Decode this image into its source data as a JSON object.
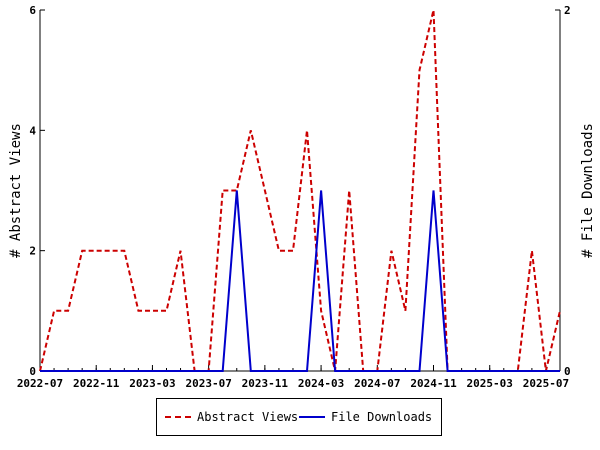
{
  "chart_data": {
    "type": "line",
    "xlabel": "",
    "ylabel": "# Abstract Views",
    "y2label": "# File Downloads",
    "x_tick_labels": [
      "2022-07",
      "2022-11",
      "2023-03",
      "2023-07",
      "2023-11",
      "2024-03",
      "2024-07",
      "2024-11",
      "2025-03",
      "2025-07"
    ],
    "x_tick_months": [
      "2022-07",
      "2022-11",
      "2023-03",
      "2023-07",
      "2023-11",
      "2024-03",
      "2024-07",
      "2024-11",
      "2025-03",
      "2025-07"
    ],
    "x_range": [
      "2022-07",
      "2025-08"
    ],
    "ylim": [
      0,
      6
    ],
    "y_ticks": [
      0,
      2,
      4,
      6
    ],
    "y2lim": [
      0,
      2
    ],
    "y2_ticks": [
      0,
      2
    ],
    "grid": false,
    "legend_position": "bottom",
    "series": [
      {
        "name": "Abstract Views",
        "axis": "left",
        "color": "#cc0000",
        "style": "dashed",
        "x": [
          "2022-07",
          "2022-08",
          "2022-09",
          "2022-10",
          "2022-11",
          "2022-12",
          "2023-01",
          "2023-02",
          "2023-03",
          "2023-04",
          "2023-05",
          "2023-06",
          "2023-07",
          "2023-08",
          "2023-09",
          "2023-10",
          "2023-11",
          "2023-12",
          "2024-01",
          "2024-02",
          "2024-03",
          "2024-04",
          "2024-05",
          "2024-06",
          "2024-07",
          "2024-08",
          "2024-09",
          "2024-10",
          "2024-11",
          "2024-12",
          "2025-01",
          "2025-02",
          "2025-03",
          "2025-04",
          "2025-05",
          "2025-06",
          "2025-07",
          "2025-08"
        ],
        "values": [
          0,
          1,
          1,
          2,
          2,
          2,
          2,
          1,
          1,
          1,
          2,
          0,
          0,
          3,
          3,
          4,
          3,
          2,
          2,
          4,
          1,
          0,
          3,
          0,
          0,
          2,
          1,
          5,
          6,
          0,
          0,
          0,
          0,
          0,
          0,
          2,
          0,
          1
        ]
      },
      {
        "name": "File Downloads",
        "axis": "right",
        "color": "#0000cc",
        "style": "solid",
        "x": [
          "2022-07",
          "2022-08",
          "2022-09",
          "2022-10",
          "2022-11",
          "2022-12",
          "2023-01",
          "2023-02",
          "2023-03",
          "2023-04",
          "2023-05",
          "2023-06",
          "2023-07",
          "2023-08",
          "2023-09",
          "2023-10",
          "2023-11",
          "2023-12",
          "2024-01",
          "2024-02",
          "2024-03",
          "2024-04",
          "2024-05",
          "2024-06",
          "2024-07",
          "2024-08",
          "2024-09",
          "2024-10",
          "2024-11",
          "2024-12",
          "2025-01",
          "2025-02",
          "2025-03",
          "2025-04",
          "2025-05",
          "2025-06",
          "2025-07",
          "2025-08"
        ],
        "values": [
          0,
          0,
          0,
          0,
          0,
          0,
          0,
          0,
          0,
          0,
          0,
          0,
          0,
          0,
          1,
          0,
          0,
          0,
          0,
          0,
          1,
          0,
          0,
          0,
          0,
          0,
          0,
          0,
          1,
          0,
          0,
          0,
          0,
          0,
          0,
          0,
          0,
          0
        ]
      }
    ]
  }
}
